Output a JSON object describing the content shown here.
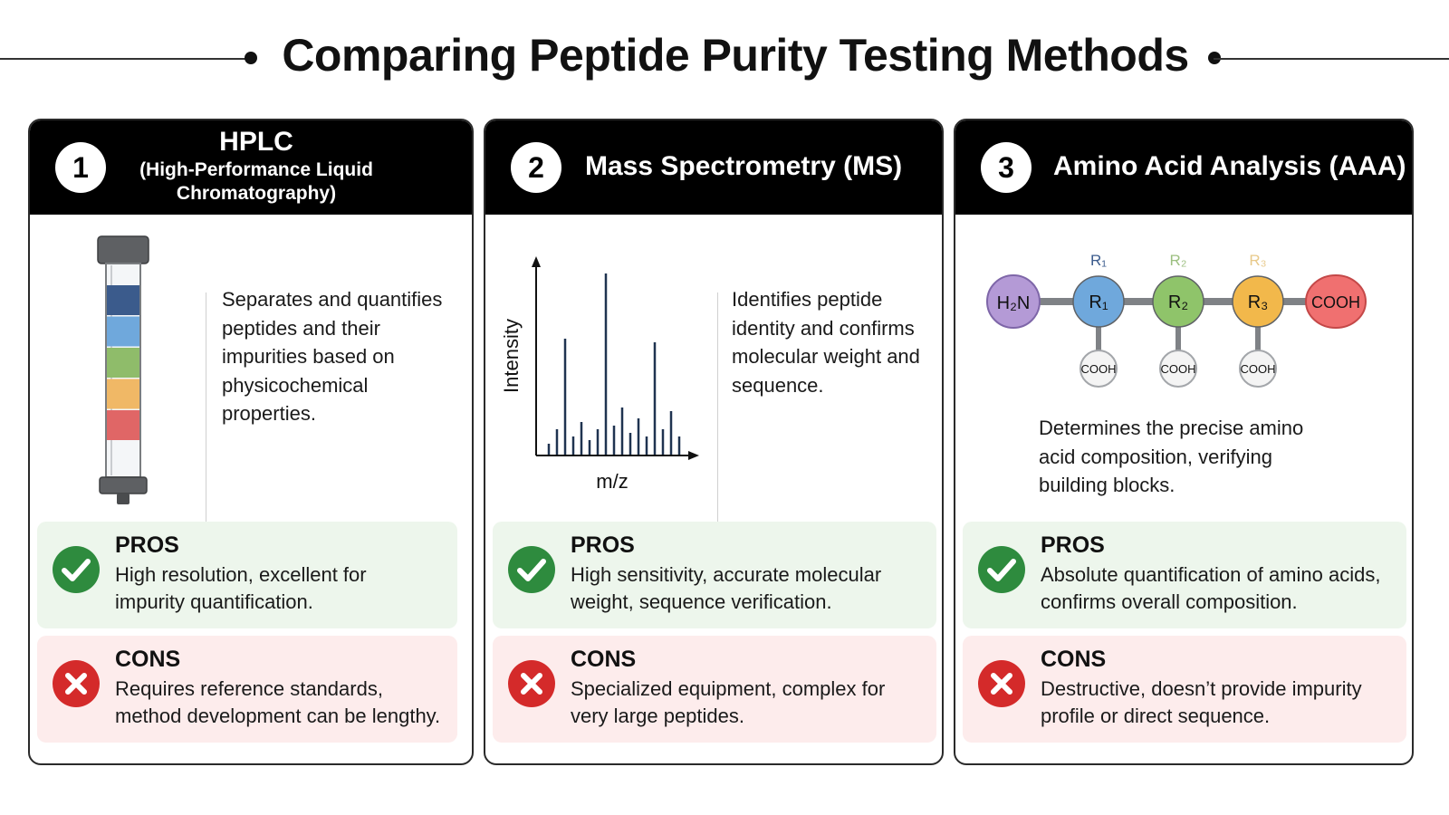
{
  "title": "Comparing Peptide Purity Testing Methods",
  "colors": {
    "pros_bg": "#edf6ec",
    "cons_bg": "#fdecec",
    "check_green": "#2e8b3e",
    "cross_red": "#d42a2a",
    "header_bg": "#000000"
  },
  "cards": [
    {
      "number": "1",
      "title": "HPLC",
      "subtitle_line1": "(High-Performance Liquid",
      "subtitle_line2": "Chromatography)",
      "description_lines": [
        "Separates and quantifies",
        "peptides and their",
        "impurities based on",
        "physicochemical",
        "properties."
      ],
      "illustration": "hplc-column",
      "band_colors": [
        "#3b5b8c",
        "#6fa8dc",
        "#8fbc6a",
        "#f0b866",
        "#e06666"
      ],
      "pros_label": "PROS",
      "pros_lines": [
        "High resolution, excellent for",
        "impurity quantification."
      ],
      "cons_label": "CONS",
      "cons_lines": [
        "Requires reference standards,",
        "method development can be lengthy."
      ]
    },
    {
      "number": "2",
      "title": "Mass Spectrometry (MS)",
      "description_lines": [
        "Identifies peptide",
        "identity and confirms",
        "molecular weight and",
        "sequence."
      ],
      "illustration": "mass-spectrum",
      "spectrum": {
        "xlabel": "m/z",
        "ylabel": "Intensity",
        "peaks": [
          0.06,
          0.14,
          0.64,
          0.1,
          0.18,
          0.08,
          0.14,
          1.0,
          0.16,
          0.26,
          0.12,
          0.2,
          0.1,
          0.62,
          0.14,
          0.24,
          0.1
        ]
      },
      "pros_label": "PROS",
      "pros_lines": [
        "High sensitivity, accurate molecular",
        "weight, sequence verification."
      ],
      "cons_label": "CONS",
      "cons_lines": [
        "Specialized equipment, complex for",
        "very large peptides."
      ]
    },
    {
      "number": "3",
      "title": "Amino Acid Analysis (AAA)",
      "description_lines": [
        "Determines the precise amino",
        "acid composition, verifying",
        "building blocks."
      ],
      "illustration": "amino-acid-chain",
      "chain": {
        "n_term": "H₂N",
        "c_term": "COOH",
        "residues": [
          {
            "label": "R₁",
            "side_label": "R₁",
            "side_group": "COOH",
            "color": "#6fa8dc",
            "label_color": "#3b5b8c"
          },
          {
            "label": "R₂",
            "side_label": "R₂",
            "side_group": "COOH",
            "color": "#8fc46a",
            "label_color": "#9cbf80"
          },
          {
            "label": "R₃",
            "side_label": "R₃",
            "side_group": "COOH",
            "color": "#f2b84b",
            "label_color": "#e8c98a"
          }
        ]
      },
      "pros_label": "PROS",
      "pros_lines": [
        "Absolute quantification of amino acids,",
        "confirms overall composition."
      ],
      "cons_label": "CONS",
      "cons_lines": [
        "Destructive, doesn’t provide impurity",
        "profile or direct sequence."
      ]
    }
  ]
}
